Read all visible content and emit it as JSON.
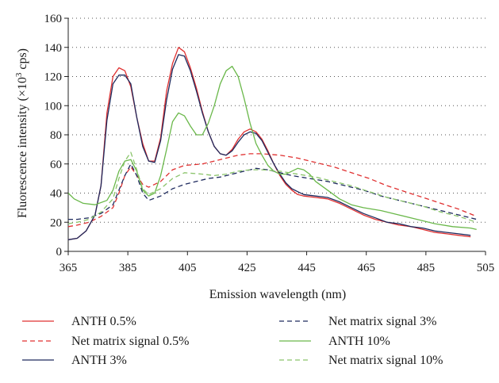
{
  "chart_data": {
    "type": "line",
    "xlabel": "Emission wavelength (nm)",
    "ylabel_main": "Fluorescence intensity (×10",
    "ylabel_sup": "3",
    "ylabel_end": " cps)",
    "xlim": [
      365,
      505
    ],
    "ylim": [
      0,
      160
    ],
    "xticks": [
      "365",
      "385",
      "405",
      "425",
      "445",
      "465",
      "485",
      "505"
    ],
    "yticks": [
      "0",
      "20",
      "40",
      "60",
      "80",
      "100",
      "120",
      "140",
      "160"
    ],
    "grid": "horizontal dotted",
    "legend_position": "bottom",
    "series": [
      {
        "name": "ANTH 0.5%",
        "color": "#e03030",
        "dash": "solid",
        "points": [
          [
            365,
            8
          ],
          [
            368,
            9
          ],
          [
            371,
            14
          ],
          [
            374,
            25
          ],
          [
            376,
            45
          ],
          [
            378,
            95
          ],
          [
            380,
            120
          ],
          [
            382,
            126
          ],
          [
            384,
            124
          ],
          [
            386,
            113
          ],
          [
            388,
            92
          ],
          [
            390,
            74
          ],
          [
            392,
            62
          ],
          [
            394,
            62
          ],
          [
            396,
            78
          ],
          [
            398,
            110
          ],
          [
            400,
            129
          ],
          [
            402,
            140
          ],
          [
            404,
            137
          ],
          [
            406,
            126
          ],
          [
            408,
            112
          ],
          [
            410,
            96
          ],
          [
            412,
            82
          ],
          [
            414,
            72
          ],
          [
            416,
            67
          ],
          [
            418,
            66
          ],
          [
            420,
            70
          ],
          [
            422,
            77
          ],
          [
            424,
            82
          ],
          [
            426,
            84
          ],
          [
            428,
            82
          ],
          [
            430,
            77
          ],
          [
            432,
            69
          ],
          [
            434,
            60
          ],
          [
            436,
            52
          ],
          [
            438,
            46
          ],
          [
            440,
            42
          ],
          [
            442,
            39
          ],
          [
            444,
            38
          ],
          [
            448,
            37
          ],
          [
            452,
            36
          ],
          [
            456,
            33
          ],
          [
            460,
            29
          ],
          [
            464,
            25
          ],
          [
            468,
            22
          ],
          [
            472,
            20
          ],
          [
            476,
            18
          ],
          [
            480,
            17
          ],
          [
            484,
            15
          ],
          [
            488,
            13
          ],
          [
            492,
            12
          ],
          [
            496,
            11
          ],
          [
            500,
            10
          ]
        ]
      },
      {
        "name": "Net matrix signal 0.5%",
        "color": "#e03030",
        "dash": "dashed",
        "points": [
          [
            365,
            17
          ],
          [
            368,
            18
          ],
          [
            372,
            20
          ],
          [
            376,
            24
          ],
          [
            380,
            30
          ],
          [
            382,
            40
          ],
          [
            384,
            52
          ],
          [
            386,
            58
          ],
          [
            388,
            52
          ],
          [
            390,
            46
          ],
          [
            392,
            44
          ],
          [
            396,
            48
          ],
          [
            400,
            56
          ],
          [
            404,
            59
          ],
          [
            410,
            60
          ],
          [
            414,
            62
          ],
          [
            418,
            64
          ],
          [
            422,
            66
          ],
          [
            426,
            67
          ],
          [
            430,
            67
          ],
          [
            436,
            66
          ],
          [
            442,
            64
          ],
          [
            448,
            61
          ],
          [
            454,
            58
          ],
          [
            460,
            54
          ],
          [
            466,
            50
          ],
          [
            472,
            45
          ],
          [
            478,
            41
          ],
          [
            484,
            37
          ],
          [
            490,
            33
          ],
          [
            496,
            29
          ],
          [
            502,
            24
          ]
        ]
      },
      {
        "name": "ANTH 3%",
        "color": "#1e2a5e",
        "dash": "solid",
        "points": [
          [
            365,
            8
          ],
          [
            368,
            9
          ],
          [
            371,
            14
          ],
          [
            374,
            25
          ],
          [
            376,
            45
          ],
          [
            378,
            90
          ],
          [
            380,
            115
          ],
          [
            382,
            121
          ],
          [
            384,
            121
          ],
          [
            386,
            115
          ],
          [
            388,
            92
          ],
          [
            390,
            72
          ],
          [
            392,
            62
          ],
          [
            394,
            61
          ],
          [
            396,
            76
          ],
          [
            398,
            104
          ],
          [
            400,
            125
          ],
          [
            402,
            135
          ],
          [
            404,
            134
          ],
          [
            406,
            124
          ],
          [
            408,
            110
          ],
          [
            410,
            95
          ],
          [
            412,
            82
          ],
          [
            414,
            72
          ],
          [
            416,
            67
          ],
          [
            418,
            66
          ],
          [
            420,
            69
          ],
          [
            422,
            75
          ],
          [
            424,
            80
          ],
          [
            426,
            82
          ],
          [
            428,
            81
          ],
          [
            430,
            76
          ],
          [
            432,
            68
          ],
          [
            434,
            60
          ],
          [
            436,
            53
          ],
          [
            438,
            47
          ],
          [
            440,
            43
          ],
          [
            442,
            41
          ],
          [
            444,
            39
          ],
          [
            448,
            38
          ],
          [
            452,
            37
          ],
          [
            456,
            34
          ],
          [
            460,
            30
          ],
          [
            464,
            26
          ],
          [
            468,
            23
          ],
          [
            472,
            20
          ],
          [
            476,
            19
          ],
          [
            480,
            17
          ],
          [
            484,
            16
          ],
          [
            488,
            14
          ],
          [
            492,
            13
          ],
          [
            496,
            12
          ],
          [
            500,
            11
          ]
        ]
      },
      {
        "name": "Net matrix signal 3%",
        "color": "#1e2a5e",
        "dash": "dashed",
        "points": [
          [
            365,
            22
          ],
          [
            368,
            22
          ],
          [
            372,
            23
          ],
          [
            376,
            26
          ],
          [
            380,
            32
          ],
          [
            382,
            42
          ],
          [
            384,
            52
          ],
          [
            386,
            60
          ],
          [
            388,
            52
          ],
          [
            390,
            40
          ],
          [
            392,
            35
          ],
          [
            396,
            38
          ],
          [
            400,
            43
          ],
          [
            404,
            46
          ],
          [
            408,
            48
          ],
          [
            412,
            50
          ],
          [
            416,
            51
          ],
          [
            420,
            53
          ],
          [
            424,
            55
          ],
          [
            428,
            57
          ],
          [
            432,
            56
          ],
          [
            436,
            54
          ],
          [
            440,
            52
          ],
          [
            446,
            50
          ],
          [
            452,
            48
          ],
          [
            458,
            45
          ],
          [
            464,
            42
          ],
          [
            470,
            38
          ],
          [
            476,
            35
          ],
          [
            482,
            32
          ],
          [
            488,
            29
          ],
          [
            494,
            26
          ],
          [
            502,
            22
          ]
        ]
      },
      {
        "name": "ANTH 10%",
        "color": "#6ab84a",
        "dash": "solid",
        "points": [
          [
            365,
            40
          ],
          [
            367,
            36
          ],
          [
            370,
            33
          ],
          [
            374,
            32
          ],
          [
            378,
            35
          ],
          [
            380,
            42
          ],
          [
            382,
            55
          ],
          [
            384,
            62
          ],
          [
            386,
            63
          ],
          [
            388,
            55
          ],
          [
            390,
            42
          ],
          [
            392,
            38
          ],
          [
            394,
            40
          ],
          [
            396,
            52
          ],
          [
            398,
            70
          ],
          [
            400,
            89
          ],
          [
            402,
            95
          ],
          [
            404,
            93
          ],
          [
            406,
            86
          ],
          [
            408,
            80
          ],
          [
            410,
            80
          ],
          [
            412,
            88
          ],
          [
            414,
            100
          ],
          [
            416,
            115
          ],
          [
            418,
            124
          ],
          [
            420,
            127
          ],
          [
            422,
            120
          ],
          [
            424,
            105
          ],
          [
            426,
            88
          ],
          [
            428,
            74
          ],
          [
            430,
            66
          ],
          [
            432,
            59
          ],
          [
            434,
            55
          ],
          [
            436,
            53
          ],
          [
            438,
            53
          ],
          [
            440,
            55
          ],
          [
            442,
            57
          ],
          [
            444,
            56
          ],
          [
            446,
            53
          ],
          [
            448,
            48
          ],
          [
            452,
            42
          ],
          [
            456,
            36
          ],
          [
            460,
            32
          ],
          [
            464,
            30
          ],
          [
            470,
            28
          ],
          [
            476,
            25
          ],
          [
            482,
            22
          ],
          [
            488,
            19
          ],
          [
            494,
            17
          ],
          [
            500,
            16
          ],
          [
            502,
            15
          ]
        ]
      },
      {
        "name": "Net matrix signal 10%",
        "color": "#8ac46a",
        "dash": "dashed",
        "points": [
          [
            365,
            19
          ],
          [
            368,
            20
          ],
          [
            372,
            22
          ],
          [
            376,
            27
          ],
          [
            380,
            36
          ],
          [
            382,
            50
          ],
          [
            384,
            62
          ],
          [
            386,
            68
          ],
          [
            388,
            56
          ],
          [
            390,
            43
          ],
          [
            392,
            39
          ],
          [
            396,
            43
          ],
          [
            400,
            50
          ],
          [
            404,
            54
          ],
          [
            410,
            53
          ],
          [
            414,
            52
          ],
          [
            418,
            53
          ],
          [
            422,
            55
          ],
          [
            426,
            56
          ],
          [
            430,
            56
          ],
          [
            436,
            55
          ],
          [
            442,
            53
          ],
          [
            448,
            51
          ],
          [
            454,
            48
          ],
          [
            460,
            45
          ],
          [
            466,
            41
          ],
          [
            472,
            37
          ],
          [
            478,
            34
          ],
          [
            484,
            31
          ],
          [
            490,
            27
          ],
          [
            496,
            24
          ],
          [
            502,
            20
          ]
        ]
      }
    ]
  }
}
